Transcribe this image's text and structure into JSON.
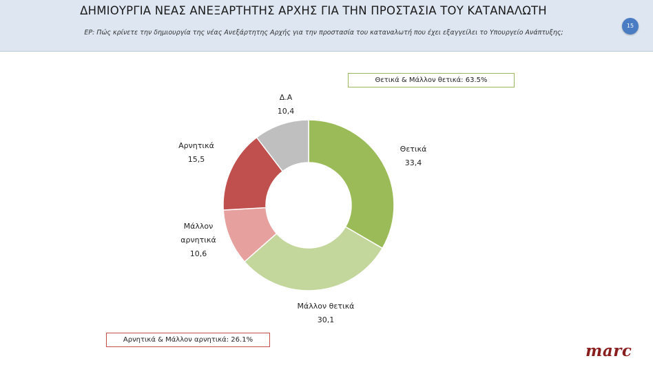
{
  "header": {
    "title": "ΔΗΜΙΟΥΡΓΙΑ ΝΕΑΣ ΑΝΕΞΑΡΤΗΤΗΣ ΑΡΧΗΣ ΓΙΑ ΤΗΝ ΠΡΟΣΤΑΣΙΑ ΤΟΥ ΚΑΤΑΝΑΛΩΤΗ",
    "subtitle": "ΕΡ: Πώς κρίνετε την δημιουργία της νέας Ανεξάρτητης Αρχής για την προστασία του καταναλωτή που έχει εξαγγείλει το Υπουργείο Ανάπτυξης;",
    "page_number": "15"
  },
  "summaries": {
    "positive": "Θετικά & Μάλλον θετικά: 63.5%",
    "negative": "Αρνητικά & Μάλλον αρνητικά: 26.1%"
  },
  "logo": "marc",
  "chart_data": {
    "type": "pie",
    "donut": true,
    "title": "",
    "slices": [
      {
        "label": "Θετικά",
        "value": 33.4,
        "display": "33,4",
        "color": "#9bbb59"
      },
      {
        "label": "Μάλλον θετικά",
        "value": 30.1,
        "display": "30,1",
        "color": "#c3d69b"
      },
      {
        "label": "Μάλλον αρνητικά",
        "value": 10.6,
        "display": "10,6",
        "color": "#e6a09e"
      },
      {
        "label": "Αρνητικά",
        "value": 15.5,
        "display": "15,5",
        "color": "#c0504d"
      },
      {
        "label": "Δ.Α",
        "value": 10.4,
        "display": "10,4",
        "color": "#bfbfbf"
      }
    ]
  }
}
